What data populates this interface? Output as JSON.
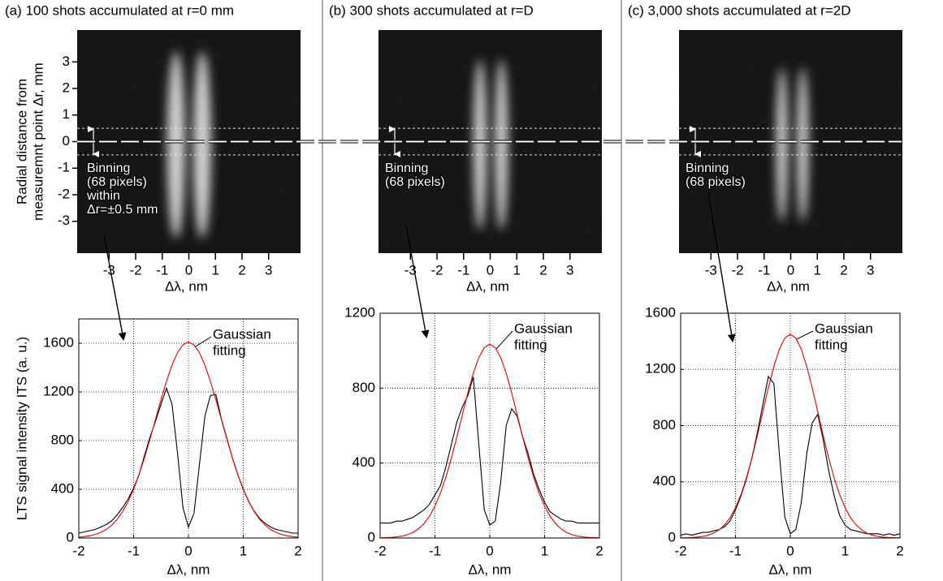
{
  "chart_data": [
    {
      "type": "image",
      "title": "(a) 100 shots accumulated at r=0 mm",
      "ylabel_lines": [
        "Radial distance from",
        "measuremnt point Δr, mm"
      ],
      "xlabel": "Δλ, nm",
      "xlim": [
        -4.2,
        4.2
      ],
      "ylim": [
        -4.2,
        4.2
      ],
      "xticks": [
        -3,
        -2,
        -1,
        0,
        1,
        2,
        3
      ],
      "yticks": [
        -3,
        -2,
        -1,
        0,
        1,
        2,
        3
      ],
      "band": [
        -0.5,
        0.5
      ],
      "annotation_lines": [
        "Binning",
        "(68 pixels)",
        "within",
        "Δr=±0.5  mm"
      ]
    },
    {
      "type": "line",
      "ylabel": "LTS signal intensity ITS (a. u.)",
      "xlabel": "Δλ, nm",
      "xlim": [
        -2,
        2
      ],
      "ylim": [
        0,
        1800
      ],
      "xticks": [
        -2,
        -1,
        0,
        1,
        2
      ],
      "yticks": [
        0,
        400,
        800,
        1200,
        1600
      ],
      "grid": true,
      "annotation_lines": [
        "Gaussian",
        "fitting"
      ],
      "x": [
        -2,
        -1.9,
        -1.8,
        -1.7,
        -1.6,
        -1.5,
        -1.4,
        -1.3,
        -1.2,
        -1.1,
        -1,
        -0.9,
        -0.8,
        -0.7,
        -0.6,
        -0.5,
        -0.4,
        -0.3,
        -0.2,
        -0.1,
        0,
        0.1,
        0.2,
        0.3,
        0.4,
        0.5,
        0.6,
        0.7,
        0.8,
        0.9,
        1,
        1.1,
        1.2,
        1.3,
        1.4,
        1.5,
        1.6,
        1.7,
        1.8,
        1.9,
        2
      ],
      "series": [
        {
          "color": "#000000",
          "values": [
            40,
            50,
            60,
            70,
            90,
            110,
            140,
            190,
            250,
            320,
            410,
            520,
            680,
            830,
            960,
            1100,
            1230,
            1100,
            700,
            250,
            90,
            200,
            600,
            1000,
            1170,
            1180,
            980,
            820,
            660,
            520,
            400,
            300,
            220,
            160,
            120,
            90,
            70,
            60,
            50,
            40,
            40
          ]
        },
        {
          "color": "#e00000",
          "values": [
            6,
            11,
            18,
            29,
            46,
            70,
            105,
            153,
            217,
            298,
            400,
            521,
            661,
            814,
            976,
            1137,
            1288,
            1420,
            1523,
            1588,
            1610,
            1588,
            1523,
            1420,
            1288,
            1137,
            976,
            814,
            661,
            521,
            400,
            298,
            217,
            153,
            105,
            70,
            46,
            29,
            18,
            11,
            6
          ]
        }
      ]
    },
    {
      "type": "image",
      "title": "(b) 300 shots accumulated at r=D",
      "xlabel": "Δλ, nm",
      "xlim": [
        -4.2,
        4.2
      ],
      "ylim": [
        -4.2,
        4.2
      ],
      "xticks": [
        -3,
        -2,
        -1,
        0,
        1,
        2,
        3
      ],
      "band": [
        -0.5,
        0.5
      ],
      "annotation_lines": [
        "Binning",
        "(68 pixels)"
      ]
    },
    {
      "type": "line",
      "xlabel": "Δλ, nm",
      "xlim": [
        -2,
        2
      ],
      "ylim": [
        0,
        1200
      ],
      "xticks": [
        -2,
        -1,
        0,
        1,
        2
      ],
      "yticks": [
        0,
        400,
        800,
        1200
      ],
      "grid": true,
      "annotation_lines": [
        "Gaussian",
        "fitting"
      ],
      "x": [
        -2,
        -1.9,
        -1.8,
        -1.7,
        -1.6,
        -1.5,
        -1.4,
        -1.3,
        -1.2,
        -1.1,
        -1,
        -0.9,
        -0.8,
        -0.7,
        -0.6,
        -0.5,
        -0.4,
        -0.3,
        -0.2,
        -0.1,
        0,
        0.1,
        0.2,
        0.3,
        0.4,
        0.5,
        0.6,
        0.7,
        0.8,
        0.9,
        1,
        1.1,
        1.2,
        1.3,
        1.4,
        1.5,
        1.6,
        1.7,
        1.8,
        1.9,
        2
      ],
      "series": [
        {
          "color": "#000000",
          "values": [
            80,
            80,
            80,
            90,
            90,
            100,
            110,
            130,
            150,
            180,
            230,
            280,
            380,
            500,
            620,
            700,
            760,
            860,
            500,
            150,
            70,
            90,
            300,
            600,
            690,
            650,
            540,
            450,
            340,
            260,
            190,
            140,
            120,
            100,
            90,
            90,
            80,
            80,
            80,
            80,
            80
          ]
        },
        {
          "color": "#e00000",
          "values": [
            1,
            2,
            3,
            6,
            10,
            18,
            30,
            49,
            77,
            116,
            170,
            239,
            325,
            427,
            540,
            658,
            775,
            879,
            963,
            1016,
            1035,
            1016,
            963,
            879,
            775,
            658,
            540,
            427,
            325,
            239,
            170,
            116,
            77,
            49,
            30,
            18,
            10,
            6,
            3,
            2,
            1
          ]
        }
      ]
    },
    {
      "type": "image",
      "title": "(c) 3,000 shots accumulated at r=2D",
      "xlabel": "Δλ, nm",
      "xlim": [
        -4.2,
        4.2
      ],
      "ylim": [
        -4.2,
        4.2
      ],
      "xticks": [
        -3,
        -2,
        -1,
        0,
        1,
        2,
        3
      ],
      "band": [
        -0.5,
        0.5
      ],
      "annotation_lines": [
        "Binning",
        "(68 pixels)"
      ]
    },
    {
      "type": "line",
      "xlabel": "Δλ, nm",
      "xlim": [
        -2,
        2
      ],
      "ylim": [
        0,
        1600
      ],
      "xticks": [
        -2,
        -1,
        0,
        1,
        2
      ],
      "yticks": [
        0,
        400,
        800,
        1200,
        1600
      ],
      "grid": true,
      "annotation_lines": [
        "Gaussian",
        "fitting"
      ],
      "x": [
        -2,
        -1.9,
        -1.8,
        -1.7,
        -1.6,
        -1.5,
        -1.4,
        -1.3,
        -1.2,
        -1.1,
        -1,
        -0.9,
        -0.8,
        -0.7,
        -0.6,
        -0.5,
        -0.4,
        -0.3,
        -0.2,
        -0.1,
        0,
        0.1,
        0.2,
        0.3,
        0.4,
        0.5,
        0.6,
        0.7,
        0.8,
        0.9,
        1,
        1.1,
        1.2,
        1.3,
        1.4,
        1.5,
        1.6,
        1.7,
        1.8,
        1.9,
        2
      ],
      "series": [
        {
          "color": "#000000",
          "values": [
            20,
            30,
            20,
            30,
            40,
            40,
            50,
            60,
            80,
            120,
            200,
            300,
            420,
            570,
            750,
            950,
            1150,
            1100,
            600,
            150,
            30,
            60,
            250,
            600,
            820,
            880,
            700,
            480,
            300,
            160,
            90,
            60,
            50,
            40,
            30,
            30,
            30,
            20,
            30,
            20,
            30
          ]
        },
        {
          "color": "#e00000",
          "values": [
            1,
            1,
            3,
            6,
            11,
            20,
            34,
            58,
            93,
            144,
            215,
            309,
            428,
            569,
            729,
            900,
            1069,
            1221,
            1344,
            1423,
            1450,
            1423,
            1344,
            1221,
            1069,
            900,
            729,
            569,
            428,
            309,
            215,
            144,
            93,
            58,
            34,
            20,
            11,
            6,
            3,
            1,
            1
          ]
        }
      ]
    }
  ]
}
